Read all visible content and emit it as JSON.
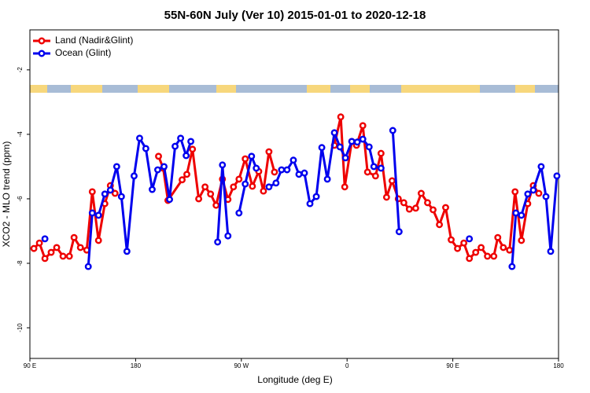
{
  "chart_data": {
    "type": "line",
    "title": "55N-60N July (Ver 10)   2015-01-01 to 2020-12-18",
    "x_label": "Longitude (deg E)",
    "y_label": "XCO2 - MLO trend (ppm)",
    "xlim": [
      90,
      540
    ],
    "ylim": [
      -10.95,
      -0.76
    ],
    "xticks": [
      {
        "value": 90,
        "label": "90 E"
      },
      180,
      {
        "value": 270,
        "label": "90 W"
      },
      {
        "value": 360,
        "label": "0"
      },
      {
        "value": 450,
        "label": "90 E"
      },
      {
        "value": 540,
        "label": "180"
      }
    ],
    "yticks": [
      -10,
      -8,
      -6,
      -4,
      -2
    ],
    "legend": "top-left",
    "series": [
      {
        "name": "Land (Nadir&Glint)",
        "color": "#ee0000",
        "x": [
          93.4,
          98.1,
          102.8,
          108.1,
          112.8,
          118.2,
          123.6,
          127.6,
          133.0,
          138.4,
          143.1,
          148.4,
          153.8,
          158.5,
          162.5,
          null,
          199.5,
          203.5,
          207.5,
          219.6,
          223.6,
          228.4,
          233.7,
          239.1,
          243.8,
          248.5,
          253.9,
          258.6,
          263.3,
          268.0,
          273.3,
          279.4,
          284.8,
          288.8,
          293.5,
          298.2,
          null,
          349.2,
          354.6,
          358.0,
          364.0,
          368.0,
          373.4,
          377.4,
          384.2,
          388.9,
          393.6,
          398.3,
          403.6,
          408.3,
          413.0,
          418.4,
          423.1,
          428.5,
          433.2,
          438.6,
          443.9,
          448.6,
          454.0,
          459.4,
          464.1,
          469.5,
          474.1,
          479.5,
          484.9,
          488.3,
          493.0,
          498.3,
          503.0,
          508.4,
          513.8,
          518.5,
          523.2
        ],
        "values": [
          -7.54,
          -7.37,
          -7.85,
          -7.66,
          -7.51,
          -7.78,
          -7.78,
          -7.2,
          -7.51,
          -7.59,
          -5.78,
          -7.29,
          -6.15,
          -5.59,
          -5.83,
          null,
          -4.68,
          -5.05,
          -6.05,
          -5.41,
          -5.24,
          -4.46,
          -6.0,
          -5.63,
          -5.85,
          -6.2,
          -5.39,
          -6.02,
          -5.63,
          -5.39,
          -4.76,
          -5.61,
          -5.15,
          -5.76,
          -4.54,
          -5.17,
          null,
          -4.34,
          -3.46,
          -5.63,
          -4.22,
          -4.34,
          -3.73,
          -5.17,
          -5.29,
          -4.59,
          -5.95,
          -5.44,
          -6.0,
          -6.12,
          -6.32,
          -6.29,
          -5.83,
          -6.12,
          -6.34,
          -6.8,
          -6.27,
          -7.27,
          -7.54,
          -7.37,
          -7.85,
          -7.66,
          -7.51,
          -7.78,
          -7.78,
          -7.2,
          -7.51,
          -7.59,
          -5.78,
          -7.29,
          -6.15,
          -5.59,
          -5.83
        ]
      },
      {
        "name": "Ocean (Glint)",
        "color": "#0000ee",
        "x": [
          102.8,
          null,
          139.7,
          143.1,
          148.4,
          153.8,
          158.5,
          163.9,
          167.9,
          172.6,
          178.7,
          183.4,
          188.7,
          194.1,
          198.8,
          204.2,
          208.9,
          213.6,
          218.3,
          223.0,
          227.0,
          null,
          249.8,
          253.9,
          258.6,
          null,
          268.0,
          273.3,
          278.7,
          282.7,
          null,
          293.5,
          299.5,
          304.2,
          308.9,
          314.3,
          319.0,
          323.7,
          328.4,
          333.8,
          338.5,
          343.2,
          349.2,
          353.9,
          358.6,
          364.0,
          368.7,
          373.4,
          378.8,
          382.8,
          388.9,
          null,
          398.9,
          404.3,
          null,
          464.1,
          null,
          500.4,
          503.7,
          508.4,
          513.8,
          518.5,
          525.2,
          529.3,
          533.3,
          538.6
        ],
        "values": [
          -7.24,
          null,
          -8.1,
          -6.44,
          -6.51,
          -5.85,
          -5.73,
          -5.0,
          -5.93,
          -7.63,
          -5.29,
          -4.12,
          -4.44,
          -5.71,
          -5.1,
          -5.0,
          -6.02,
          -4.37,
          -4.12,
          -4.66,
          -4.22,
          null,
          -7.34,
          -4.95,
          -7.15,
          null,
          -6.44,
          -5.54,
          -4.68,
          -5.05,
          null,
          -5.63,
          -5.51,
          -5.1,
          -5.1,
          -4.8,
          -5.24,
          -5.2,
          -6.15,
          -5.93,
          -4.41,
          -5.39,
          -3.95,
          -4.39,
          -4.73,
          -4.22,
          -4.24,
          -4.15,
          -4.39,
          -5.0,
          -5.05,
          null,
          -3.88,
          -7.02,
          null,
          -7.24,
          null,
          -8.1,
          -6.44,
          -6.51,
          -5.85,
          -5.73,
          -5.0,
          -5.93,
          -7.63,
          -5.29
        ]
      }
    ]
  }
}
